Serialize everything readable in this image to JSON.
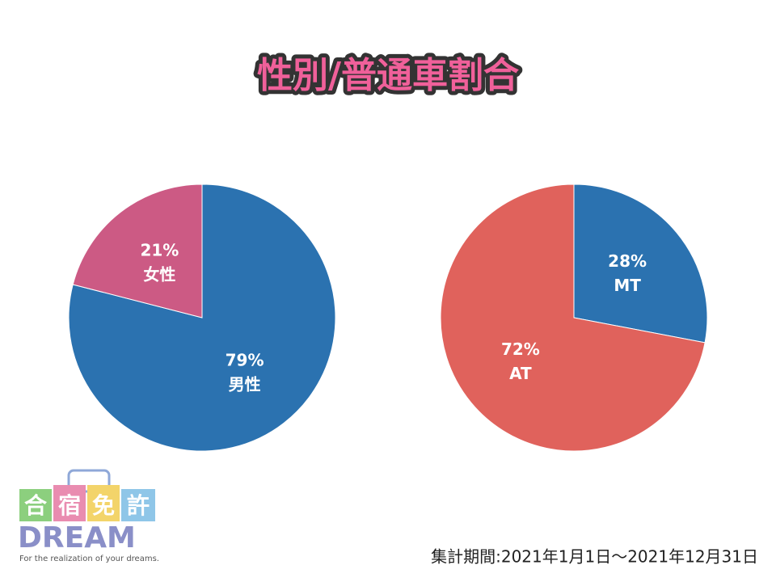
{
  "title": "性別/普通車割合",
  "footnote": "集計期間:2021年1月1日～2021年12月31日",
  "logo": {
    "name": [
      "合",
      "宿",
      "免",
      "許"
    ],
    "brand": "DREAM",
    "tagline": "For the realization of your dreams."
  },
  "chart_data": [
    {
      "type": "pie",
      "categories": [
        "男性",
        "女性"
      ],
      "values": [
        79,
        21
      ],
      "value_labels": [
        "79%",
        "21%"
      ],
      "colors": [
        "#2b72b0",
        "#cc5a84"
      ]
    },
    {
      "type": "pie",
      "categories": [
        "MT",
        "AT"
      ],
      "values": [
        28,
        72
      ],
      "value_labels": [
        "28%",
        "72%"
      ],
      "colors": [
        "#2b72b0",
        "#e0625c"
      ]
    }
  ]
}
